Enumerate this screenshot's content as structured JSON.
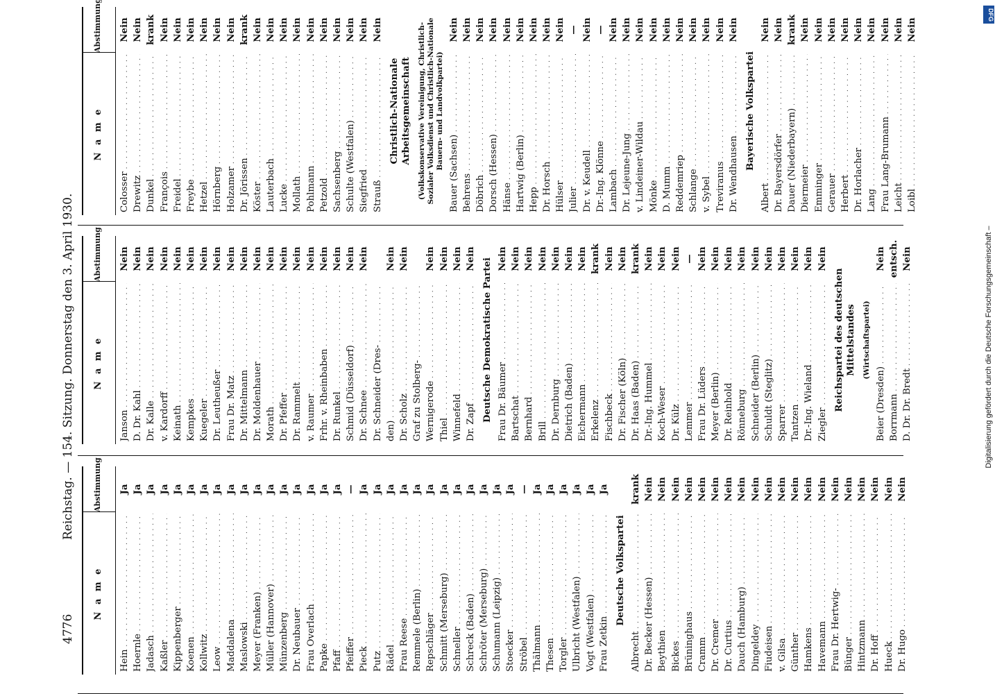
{
  "running_head": {
    "page_number": "4776",
    "title": "Reichstag. — 154. Sitzung. Donnerstag den 3. April 1930."
  },
  "column_header": {
    "name": "N a m e",
    "vote": "Abstimmung"
  },
  "columns": [
    {
      "items": [
        {
          "name": "Hein",
          "vote": "Ja"
        },
        {
          "name": "Hoernle",
          "vote": "Ja"
        },
        {
          "name": "Jadasch",
          "vote": "Ja"
        },
        {
          "name": "Kaßler",
          "vote": "Ja"
        },
        {
          "name": "Kippenberger",
          "vote": "Ja"
        },
        {
          "name": "Koenen",
          "vote": "Ja"
        },
        {
          "name": "Kollwitz",
          "vote": "Ja"
        },
        {
          "name": "Leow",
          "vote": "Ja"
        },
        {
          "name": "Maddalena",
          "vote": "Ja"
        },
        {
          "name": "Maslowski",
          "vote": "Ja"
        },
        {
          "name": "Meyer (Franken)",
          "vote": "Ja"
        },
        {
          "name": "Müller (Hannover)",
          "vote": "Ja"
        },
        {
          "name": "Münzenberg",
          "vote": "Ja"
        },
        {
          "name": "Dr. Neubauer",
          "vote": "Ja"
        },
        {
          "name": "Frau Overlach",
          "vote": "Ja"
        },
        {
          "name": "Papke",
          "vote": "Ja"
        },
        {
          "name": "Pfaff",
          "vote": "Ja"
        },
        {
          "name": "Pfeiffer",
          "vote": "—"
        },
        {
          "name": "Pieck",
          "vote": "Ja"
        },
        {
          "name": "Putz",
          "vote": "Ja"
        },
        {
          "name": "Rädel",
          "vote": "Ja"
        },
        {
          "name": "Frau Reese",
          "vote": "Ja"
        },
        {
          "name": "Remmele (Berlin)",
          "vote": "Ja"
        },
        {
          "name": "Repschläger",
          "vote": "Ja"
        },
        {
          "name": "Schmitt (Merseburg)",
          "vote": "Ja"
        },
        {
          "name": "Schneller",
          "vote": "Ja"
        },
        {
          "name": "Schreck (Baden)",
          "vote": "Ja"
        },
        {
          "name": "Schröter (Merseburg)",
          "vote": "Ja"
        },
        {
          "name": "Schumann (Leipzig)",
          "vote": "Ja"
        },
        {
          "name": "Stoecker",
          "vote": "Ja"
        },
        {
          "name": "Ströbel",
          "vote": "—"
        },
        {
          "name": "Thälmann",
          "vote": "Ja"
        },
        {
          "name": "Thesen",
          "vote": "Ja"
        },
        {
          "name": "Torgler",
          "vote": "Ja"
        },
        {
          "name": "Ulbricht (Westfalen)",
          "vote": "Ja"
        },
        {
          "name": "Vogt (Westfalen)",
          "vote": "Ja"
        },
        {
          "name": "Frau Zetkin",
          "vote": "Ja"
        },
        {
          "section": "Deutsche Volkspartei"
        },
        {
          "name": "Albrecht",
          "vote": "krank"
        },
        {
          "name": "Dr. Becker (Hessen)",
          "vote": "Nein"
        },
        {
          "name": "Beythien",
          "vote": "Nein"
        },
        {
          "name": "Bickes",
          "vote": "Nein"
        },
        {
          "name": "Brüninghaus",
          "vote": "Nein"
        },
        {
          "name": "Cramm",
          "vote": "Nein"
        },
        {
          "name": "Dr. Cremer",
          "vote": "Nein"
        },
        {
          "name": "Dr. Curtius",
          "vote": "Nein"
        },
        {
          "name": "Dauch (Hamburg)",
          "vote": "Nein"
        },
        {
          "name": "Dingeldey",
          "vote": "Nein"
        },
        {
          "name": "Fiudeisen",
          "vote": "Nein"
        },
        {
          "name": "v. Gilsa",
          "vote": "Nein"
        },
        {
          "name": "Günther",
          "vote": "Nein"
        },
        {
          "name": "Hamkens",
          "vote": "Nein"
        },
        {
          "name": "Havemann",
          "vote": "Nein"
        },
        {
          "name": "Frau Dr. Hertwig-",
          "vote": "Nein"
        },
        {
          "name": "Bünger",
          "vote": "Nein"
        },
        {
          "name": "Hintzmann",
          "vote": "Nein"
        },
        {
          "name": "Dr. Hoff",
          "vote": "Nein"
        },
        {
          "name": "Hueck",
          "vote": "Nein"
        },
        {
          "name": "Dr. Hugo",
          "vote": "Nein"
        }
      ]
    },
    {
      "items": [
        {
          "name": "Janson",
          "vote": "Nein"
        },
        {
          "name": "D. Dr. Kahl",
          "vote": "Nein"
        },
        {
          "name": "Dr. Kalle",
          "vote": "Nein"
        },
        {
          "name": "v. Kardorff",
          "vote": "Nein"
        },
        {
          "name": "Keinath",
          "vote": "Nein"
        },
        {
          "name": "Kempkes",
          "vote": "Nein"
        },
        {
          "name": "Kuegeler",
          "vote": "Nein"
        },
        {
          "name": "Dr. Leutheußer",
          "vote": "Nein"
        },
        {
          "name": "Frau Dr. Matz",
          "vote": "Nein"
        },
        {
          "name": "Dr. Mittelmann",
          "vote": "Nein"
        },
        {
          "name": "Dr. Moldenhauer",
          "vote": "Nein"
        },
        {
          "name": "Morath",
          "vote": "Nein"
        },
        {
          "name": "Dr. Pfeffer",
          "vote": "Nein"
        },
        {
          "name": "Dr. Rammelt",
          "vote": "Nein"
        },
        {
          "name": "v. Raumer",
          "vote": "Nein"
        },
        {
          "name": "Frhr. v. Rheinbaben",
          "vote": "Nein"
        },
        {
          "name": "Dr. Runkel",
          "vote": "Nein"
        },
        {
          "name": "Schmid (Düsseldorf)",
          "vote": "Nein"
        },
        {
          "name": "Dr. Schnee",
          "vote": "Nein"
        },
        {
          "name": "Dr. Schneider (Dres-",
          "vote": ""
        },
        {
          "name": "den)",
          "vote": "Nein"
        },
        {
          "name": "Dr. Scholz",
          "vote": "Nein"
        },
        {
          "name": "Graf zu Stolberg-",
          "vote": ""
        },
        {
          "name": "Wernigerode",
          "vote": "Nein"
        },
        {
          "name": "Thiel",
          "vote": "Nein"
        },
        {
          "name": "Winnefeld",
          "vote": "Nein"
        },
        {
          "name": "Dr. Zapf",
          "vote": "Nein"
        },
        {
          "section": "Deutsche Demokratische Partei"
        },
        {
          "name": "Frau Dr. Bäumer",
          "vote": "Nein"
        },
        {
          "name": "Bartschat",
          "vote": "Nein"
        },
        {
          "name": "Bernhard",
          "vote": "Nein"
        },
        {
          "name": "Brill",
          "vote": "Nein"
        },
        {
          "name": "Dr. Dernburg",
          "vote": "Nein"
        },
        {
          "name": "Dietrich (Baden)",
          "vote": "Nein"
        },
        {
          "name": "Eichermann",
          "vote": "Nein"
        },
        {
          "name": "Erkelenz",
          "vote": "krank"
        },
        {
          "name": "Fischbeck",
          "vote": "Nein"
        },
        {
          "name": "Dr. Fischer (Köln)",
          "vote": "Nein"
        },
        {
          "name": "Dr. Haas (Baden)",
          "vote": "krank"
        },
        {
          "name": "Dr.-Ing. Hummel",
          "vote": "Nein"
        },
        {
          "name": "Koch-Weser",
          "vote": "Nein"
        },
        {
          "name": "Dr. Külz",
          "vote": "Nein"
        },
        {
          "name": "Lemmer",
          "vote": "—"
        },
        {
          "name": "Frau Dr. Lüders",
          "vote": "Nein"
        },
        {
          "name": "Meyer (Berlin)",
          "vote": "Nein"
        },
        {
          "name": "Dr. Reinhold",
          "vote": "Nein"
        },
        {
          "name": "Rönneburg",
          "vote": "Nein"
        },
        {
          "name": "Schneider (Berlin)",
          "vote": "Nein"
        },
        {
          "name": "Schuldt (Steglitz)",
          "vote": "Nein"
        },
        {
          "name": "Sparrer",
          "vote": "Nein"
        },
        {
          "name": "Tantzen",
          "vote": "Nein"
        },
        {
          "name": "Dr.-Ing. Wieland",
          "vote": "Nein"
        },
        {
          "name": "Ziegler",
          "vote": "Nein"
        },
        {
          "section": "Reichspartei des deutschen Mittelstandes"
        },
        {
          "subsection": "(Wirtschaftspartei)"
        },
        {
          "name": "Beier (Dresden)",
          "vote": "Nein"
        },
        {
          "name": "Borrmann",
          "vote": "entsch."
        },
        {
          "name": "D. Dr. Dr. Bredt",
          "vote": "Nein"
        }
      ]
    },
    {
      "items": [
        {
          "name": "Colosser",
          "vote": "Nein"
        },
        {
          "name": "Drewitz",
          "vote": "Nein"
        },
        {
          "name": "Dunkel",
          "vote": "krank"
        },
        {
          "name": "François",
          "vote": "Nein"
        },
        {
          "name": "Freidel",
          "vote": "Nein"
        },
        {
          "name": "Freybe",
          "vote": "Nein"
        },
        {
          "name": "Hetzel",
          "vote": "Nein"
        },
        {
          "name": "Hörnberg",
          "vote": "Nein"
        },
        {
          "name": "Holzamer",
          "vote": "Nein"
        },
        {
          "name": "Dr. Jörissen",
          "vote": "krank"
        },
        {
          "name": "Köster",
          "vote": "Nein"
        },
        {
          "name": "Lauterbach",
          "vote": "Nein"
        },
        {
          "name": "Lucke",
          "vote": "Nein"
        },
        {
          "name": "Mollath",
          "vote": "Nein"
        },
        {
          "name": "Pohlmann",
          "vote": "Nein"
        },
        {
          "name": "Petzold",
          "vote": "Nein"
        },
        {
          "name": "Sachsenberg",
          "vote": "Nein"
        },
        {
          "name": "Schulte (Westfalen)",
          "vote": "Nein"
        },
        {
          "name": "Siegfried",
          "vote": "Nein"
        },
        {
          "name": "Strauß",
          "vote": "Nein"
        },
        {
          "section": "Christlich-Nationale Arbeitsgemeinschaft"
        },
        {
          "subsection": "(Volkskonservative Vereinigung, Christlich-Sozialer Volksdienst und Christlich-Nationale Bauern- und Landvolkpartei)"
        },
        {
          "name": "Bauer (Sachsen)",
          "vote": "Nein"
        },
        {
          "name": "Behrens",
          "vote": "Nein"
        },
        {
          "name": "Döbrich",
          "vote": "Nein"
        },
        {
          "name": "Dorsch (Hessen)",
          "vote": "Nein"
        },
        {
          "name": "Hänse",
          "vote": "Nein"
        },
        {
          "name": "Hartwig (Berlin)",
          "vote": "Nein"
        },
        {
          "name": "Hepp",
          "vote": "Nein"
        },
        {
          "name": "Dr. Horsch",
          "vote": "Nein"
        },
        {
          "name": "Hülser",
          "vote": "Nein"
        },
        {
          "name": "Julier",
          "vote": "—"
        },
        {
          "name": "Dr. v. Keudell",
          "vote": "Nein"
        },
        {
          "name": "Dr.-Ing. Klönne",
          "vote": "—"
        },
        {
          "name": "Lambach",
          "vote": "Nein"
        },
        {
          "name": "Dr. Lejeune-Jung",
          "vote": "Nein"
        },
        {
          "name": "v. Lindeiner-Wildau",
          "vote": "Nein"
        },
        {
          "name": "Mönke",
          "vote": "Nein"
        },
        {
          "name": "D. Mumm",
          "vote": "Nein"
        },
        {
          "name": "Reddemriep",
          "vote": "Nein"
        },
        {
          "name": "Schlange",
          "vote": "Nein"
        },
        {
          "name": "v. Sybel",
          "vote": "Nein"
        },
        {
          "name": "Treviranus",
          "vote": "Nein"
        },
        {
          "name": "Dr. Wendhausen",
          "vote": "Nein"
        },
        {
          "section": "Bayerische Volkspartei"
        },
        {
          "name": "Albert",
          "vote": "Nein"
        },
        {
          "name": "Dr. Bayersdörfer",
          "vote": "Nein"
        },
        {
          "name": "Dauer (Niederbayern)",
          "vote": "krank"
        },
        {
          "name": "Diermeier",
          "vote": "Nein"
        },
        {
          "name": "Emminger",
          "vote": "Nein"
        },
        {
          "name": "Gerauer",
          "vote": "Nein"
        },
        {
          "name": "Herbert",
          "vote": "Nein"
        },
        {
          "name": "Dr. Horlacher",
          "vote": "Nein"
        },
        {
          "name": "Lang",
          "vote": "Nein"
        },
        {
          "name": "Frau Lang-Brumann",
          "vote": "Nein"
        },
        {
          "name": "Leicht",
          "vote": "Nein"
        },
        {
          "name": "Loibl",
          "vote": "Nein"
        }
      ]
    }
  ],
  "sidebar": {
    "text": "Digitalisierung gefördert durch die Deutsche Forschungsgemeinschaft –",
    "logo": "DFG"
  }
}
